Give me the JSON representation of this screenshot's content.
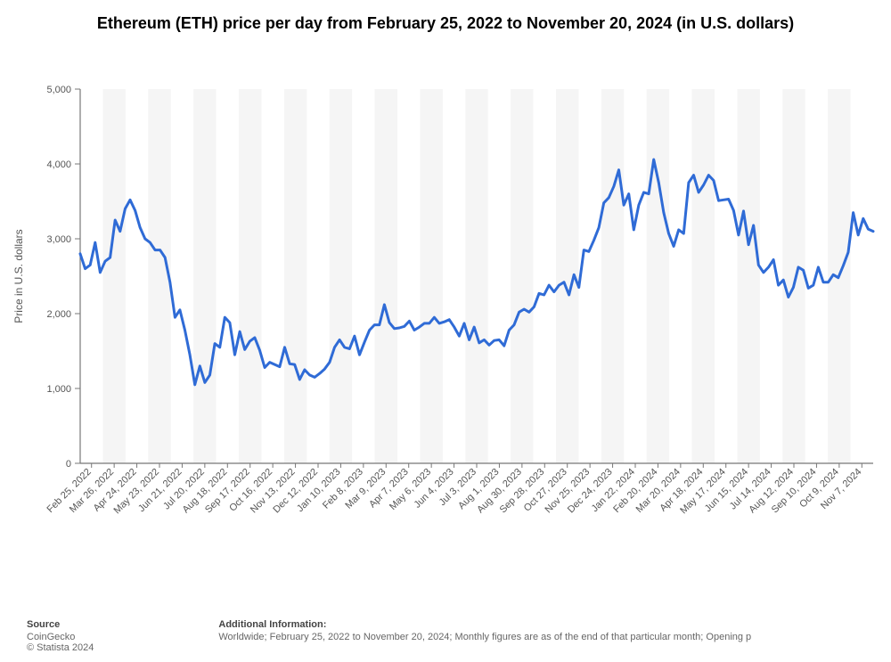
{
  "title": "Ethereum (ETH) price per day from February 25, 2022 to November 20, 2024 (in U.S. dollars)",
  "title_fontsize": 18,
  "chart": {
    "type": "line",
    "line_color": "#2f6bd6",
    "line_width": 3,
    "background_color": "#ffffff",
    "stripe_color": "#f5f5f5",
    "grid_color": "#e8e8e8",
    "axis_color": "#777777",
    "text_color": "#555555",
    "ylabel": "Price in U.S. dollars",
    "ylabel_fontsize": 12,
    "tick_fontsize": 11,
    "ylim": [
      0,
      5000
    ],
    "yticks": [
      0,
      1000,
      2000,
      3000,
      4000,
      5000
    ],
    "ytick_labels": [
      "0",
      "1,000",
      "2,000",
      "3,000",
      "4,000",
      "5,000"
    ],
    "x_labels": [
      "Feb 25, 2022",
      "Mar 26, 2022",
      "Apr 24, 2022",
      "May 23, 2022",
      "Jun 21, 2022",
      "Jul 20, 2022",
      "Aug 18, 2022",
      "Sep 17, 2022",
      "Oct 16, 2022",
      "Nov 13, 2022",
      "Dec 12, 2022",
      "Jan 10, 2023",
      "Feb 8, 2023",
      "Mar 9, 2023",
      "Apr 7, 2023",
      "May 6, 2023",
      "Jun 4, 2023",
      "Jul 3, 2023",
      "Aug 1, 2023",
      "Aug 30, 2023",
      "Sep 28, 2023",
      "Oct 27, 2023",
      "Nov 25, 2023",
      "Dec 24, 2023",
      "Jan 22, 2024",
      "Feb 20, 2024",
      "Mar 20, 2024",
      "Apr 18, 2024",
      "May 17, 2024",
      "Jun 15, 2024",
      "Jul 14, 2024",
      "Aug 12, 2024",
      "Sep 10, 2024",
      "Oct 9, 2024",
      "Nov 7, 2024"
    ],
    "values": [
      2800,
      2600,
      2650,
      2950,
      2550,
      2700,
      2750,
      3250,
      3100,
      3400,
      3520,
      3380,
      3150,
      3000,
      2950,
      2850,
      2850,
      2750,
      2420,
      1950,
      2050,
      1780,
      1450,
      1050,
      1300,
      1080,
      1180,
      1600,
      1550,
      1950,
      1880,
      1450,
      1760,
      1520,
      1630,
      1680,
      1510,
      1280,
      1350,
      1320,
      1290,
      1550,
      1330,
      1320,
      1120,
      1250,
      1180,
      1150,
      1200,
      1260,
      1350,
      1550,
      1650,
      1550,
      1530,
      1700,
      1450,
      1620,
      1780,
      1850,
      1850,
      2120,
      1880,
      1800,
      1810,
      1830,
      1900,
      1780,
      1820,
      1870,
      1870,
      1950,
      1870,
      1890,
      1920,
      1820,
      1700,
      1870,
      1650,
      1820,
      1610,
      1650,
      1580,
      1640,
      1650,
      1570,
      1780,
      1850,
      2020,
      2060,
      2020,
      2090,
      2270,
      2250,
      2380,
      2290,
      2380,
      2420,
      2250,
      2520,
      2350,
      2850,
      2830,
      2980,
      3150,
      3480,
      3550,
      3700,
      3920,
      3450,
      3600,
      3120,
      3450,
      3620,
      3600,
      4060,
      3750,
      3350,
      3070,
      2900,
      3120,
      3070,
      3750,
      3850,
      3620,
      3720,
      3850,
      3780,
      3510,
      3520,
      3530,
      3380,
      3050,
      3370,
      2920,
      3180,
      2650,
      2550,
      2620,
      2720,
      2380,
      2450,
      2220,
      2350,
      2620,
      2580,
      2340,
      2380,
      2620,
      2420,
      2420,
      2520,
      2480,
      2640,
      2820,
      3350,
      3050,
      3270,
      3130,
      3100
    ]
  },
  "footer": {
    "source_label": "Source",
    "source_value": "CoinGecko",
    "copyright": "© Statista 2024",
    "addl_label": "Additional Information:",
    "addl_value": "Worldwide; February 25, 2022 to November 20, 2024; Monthly figures are as of the end of that particular month; Opening p"
  }
}
